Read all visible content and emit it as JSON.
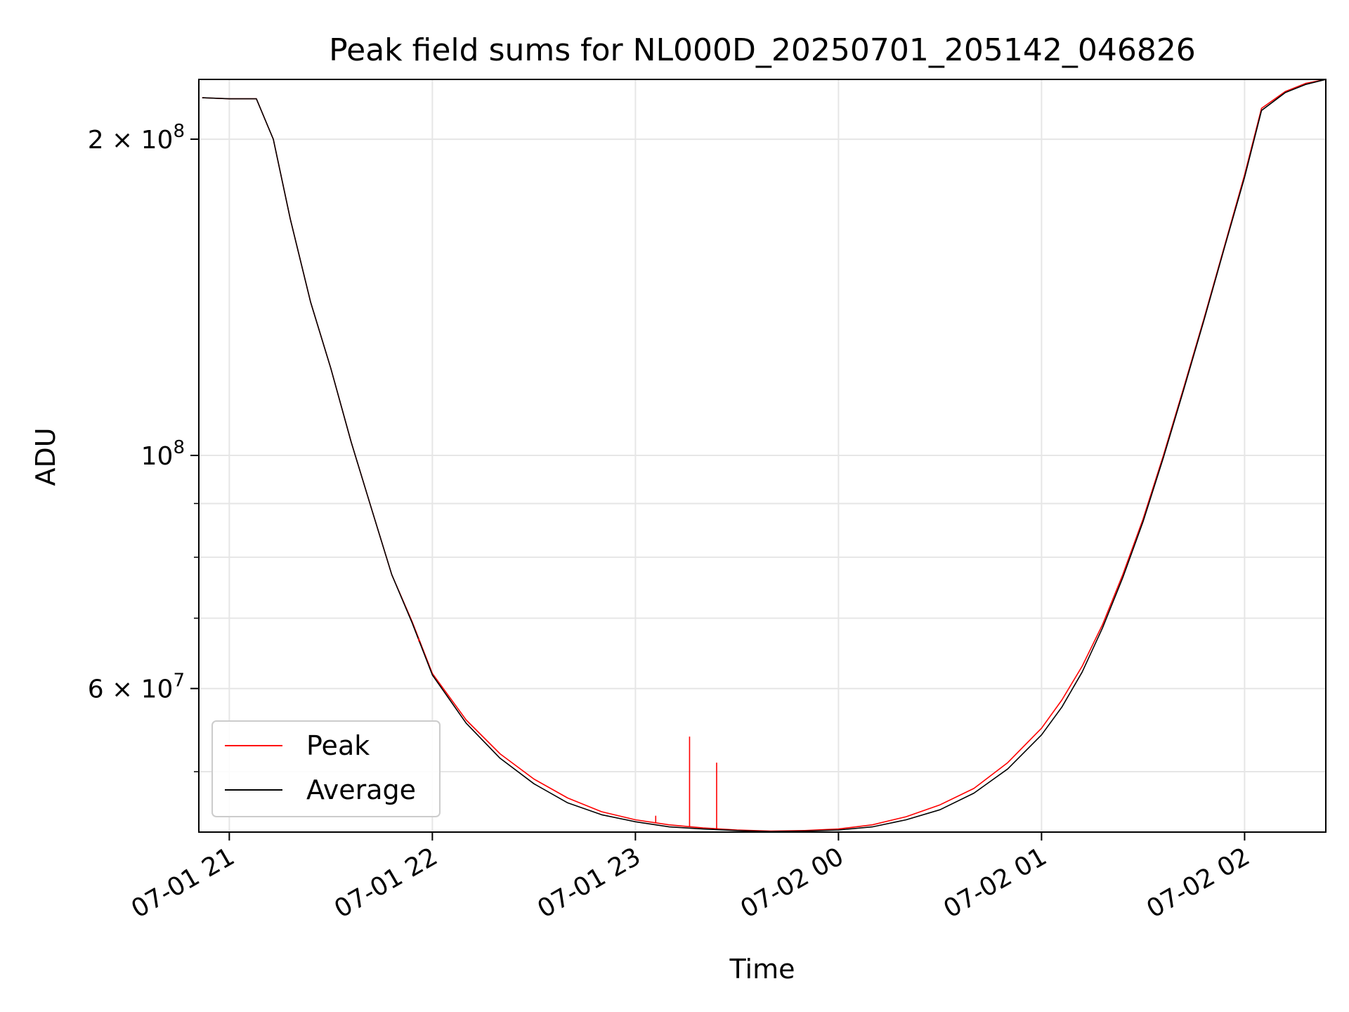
{
  "chart_data": {
    "type": "line",
    "title": "Peak field sums for NL000D_20250701_205142_046826",
    "xlabel": "Time",
    "ylabel": "ADU",
    "x_scale": "time",
    "y_scale": "log",
    "xlim": [
      "2025-07-01 20:51",
      "2025-07-02 02:24"
    ],
    "ylim": [
      43800000,
      228000000
    ],
    "x_ticks": [
      {
        "value": "2025-07-01 21:00",
        "label": "07-01 21"
      },
      {
        "value": "2025-07-01 22:00",
        "label": "07-01 22"
      },
      {
        "value": "2025-07-01 23:00",
        "label": "07-01 23"
      },
      {
        "value": "2025-07-02 00:00",
        "label": "07-02 00"
      },
      {
        "value": "2025-07-02 01:00",
        "label": "07-02 01"
      },
      {
        "value": "2025-07-02 02:00",
        "label": "07-02 02"
      }
    ],
    "y_major_ticks": [
      {
        "value": 60000000,
        "base": "6 × 10",
        "exp": "7"
      },
      {
        "value": 100000000,
        "base": "10",
        "exp": "8"
      },
      {
        "value": 200000000,
        "base": "2 × 10",
        "exp": "8"
      }
    ],
    "y_minor_ticks": [
      50000000,
      70000000,
      80000000,
      90000000
    ],
    "grid": true,
    "legend_position": "lower-left",
    "series": [
      {
        "name": "Peak",
        "color": "#ff0000",
        "x": [
          "2025-07-01 20:52",
          "2025-07-01 21:00",
          "2025-07-01 21:08",
          "2025-07-01 21:13",
          "2025-07-01 21:18",
          "2025-07-01 21:24",
          "2025-07-01 21:30",
          "2025-07-01 21:36",
          "2025-07-01 21:42",
          "2025-07-01 21:48",
          "2025-07-01 21:54",
          "2025-07-01 22:00",
          "2025-07-01 22:10",
          "2025-07-01 22:20",
          "2025-07-01 22:30",
          "2025-07-01 22:40",
          "2025-07-01 22:50",
          "2025-07-01 23:00",
          "2025-07-01 23:10",
          "2025-07-01 23:20",
          "2025-07-01 23:30",
          "2025-07-01 23:40",
          "2025-07-01 23:50",
          "2025-07-02 00:00",
          "2025-07-02 00:10",
          "2025-07-02 00:20",
          "2025-07-02 00:30",
          "2025-07-02 00:40",
          "2025-07-02 00:50",
          "2025-07-02 01:00",
          "2025-07-02 01:06",
          "2025-07-02 01:12",
          "2025-07-02 01:18",
          "2025-07-02 01:24",
          "2025-07-02 01:30",
          "2025-07-02 01:36",
          "2025-07-02 01:42",
          "2025-07-02 01:48",
          "2025-07-02 01:54",
          "2025-07-02 02:00",
          "2025-07-02 02:05",
          "2025-07-02 02:12",
          "2025-07-02 02:18",
          "2025-07-02 02:24"
        ],
        "y": [
          219000000,
          218500000,
          218500000,
          200000000,
          168000000,
          140000000,
          121000000,
          103000000,
          89000000,
          77000000,
          69500000,
          62000000,
          56000000,
          52000000,
          49200000,
          47200000,
          45800000,
          45000000,
          44500000,
          44200000,
          44000000,
          43900000,
          43950000,
          44100000,
          44500000,
          45300000,
          46500000,
          48200000,
          51000000,
          55000000,
          58500000,
          63000000,
          69000000,
          77000000,
          87000000,
          100000000,
          116000000,
          135000000,
          158000000,
          185000000,
          214000000,
          222000000,
          226000000,
          228000000
        ]
      },
      {
        "name": "Average",
        "color": "#000000",
        "x": [
          "2025-07-01 20:52",
          "2025-07-01 21:00",
          "2025-07-01 21:08",
          "2025-07-01 21:13",
          "2025-07-01 21:18",
          "2025-07-01 21:24",
          "2025-07-01 21:30",
          "2025-07-01 21:36",
          "2025-07-01 21:42",
          "2025-07-01 21:48",
          "2025-07-01 21:54",
          "2025-07-01 22:00",
          "2025-07-01 22:10",
          "2025-07-01 22:20",
          "2025-07-01 22:30",
          "2025-07-01 22:40",
          "2025-07-01 22:50",
          "2025-07-01 23:00",
          "2025-07-01 23:10",
          "2025-07-01 23:20",
          "2025-07-01 23:30",
          "2025-07-01 23:40",
          "2025-07-01 23:50",
          "2025-07-02 00:00",
          "2025-07-02 00:10",
          "2025-07-02 00:20",
          "2025-07-02 00:30",
          "2025-07-02 00:40",
          "2025-07-02 00:50",
          "2025-07-02 01:00",
          "2025-07-02 01:06",
          "2025-07-02 01:12",
          "2025-07-02 01:18",
          "2025-07-02 01:24",
          "2025-07-02 01:30",
          "2025-07-02 01:36",
          "2025-07-02 01:42",
          "2025-07-02 01:48",
          "2025-07-02 01:54",
          "2025-07-02 02:00",
          "2025-07-02 02:05",
          "2025-07-02 02:12",
          "2025-07-02 02:18",
          "2025-07-02 02:24"
        ],
        "y": [
          219000000,
          218500000,
          218500000,
          200000000,
          168000000,
          140000000,
          121000000,
          103000000,
          89000000,
          77000000,
          69300000,
          61800000,
          55600000,
          51500000,
          48700000,
          46700000,
          45500000,
          44800000,
          44300000,
          44100000,
          43950000,
          43850000,
          43900000,
          44000000,
          44300000,
          45000000,
          46000000,
          47700000,
          50300000,
          54200000,
          57600000,
          62200000,
          68500000,
          76500000,
          86500000,
          99500000,
          115500000,
          134500000,
          157500000,
          184000000,
          213000000,
          221500000,
          225500000,
          228000000
        ]
      }
    ],
    "spikes": [
      {
        "series": "Peak",
        "x": "2025-07-01 23:16",
        "y": 54000000
      },
      {
        "series": "Peak",
        "x": "2025-07-01 23:24",
        "y": 51000000
      },
      {
        "series": "Peak",
        "x": "2025-07-01 22:11",
        "y": 55500000
      },
      {
        "series": "Peak",
        "x": "2025-07-01 21:56",
        "y": 66500000
      },
      {
        "series": "Peak",
        "x": "2025-07-01 23:06",
        "y": 45400000
      }
    ]
  }
}
